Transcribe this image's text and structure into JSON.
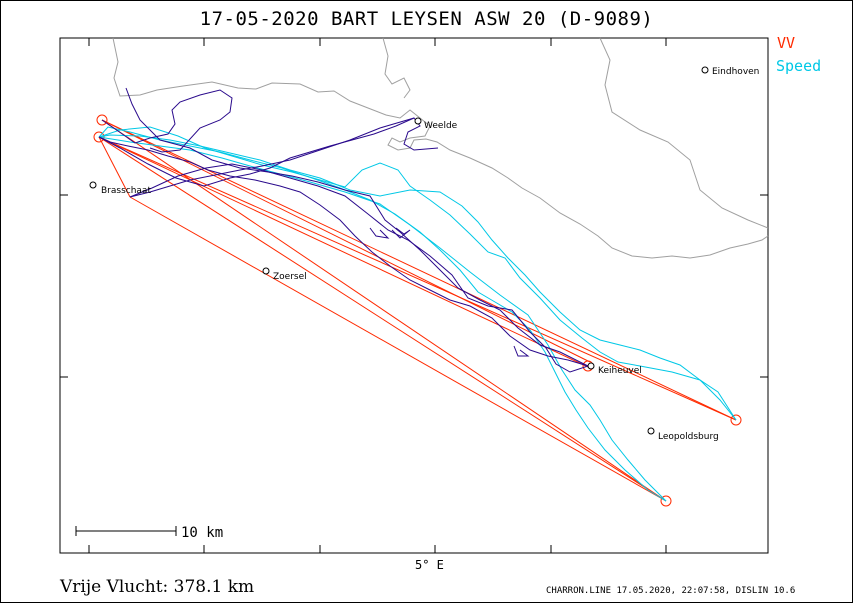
{
  "title": "17-05-2020   BART LEYSEN   ASW 20 (D-9089)",
  "legend": {
    "vv": "VV",
    "speed": "Speed"
  },
  "axis": {
    "x_tick_label": "5° E"
  },
  "scale_bar": {
    "label": "10 km"
  },
  "distance": "Vrije Vlucht:  378.1 km",
  "footer": "CHARRON.LINE 17.05.2020, 22:07:58, DISLIN 10.6",
  "places": [
    {
      "id": "eindhoven",
      "name": "Eindhoven"
    },
    {
      "id": "weelde",
      "name": "Weelde"
    },
    {
      "id": "brasschaat",
      "name": "Brasschaat"
    },
    {
      "id": "zoersel",
      "name": "Zoersel"
    },
    {
      "id": "keiheuvel",
      "name": "Keiheuvel"
    },
    {
      "id": "leopoldsburg",
      "name": "Leopoldsburg"
    }
  ],
  "colors": {
    "task_line": "#ff2a00",
    "track_vv": "#2a0a8c",
    "track_speed": "#00c8e6",
    "border": "#a0a0a0",
    "frame": "#000000"
  }
}
